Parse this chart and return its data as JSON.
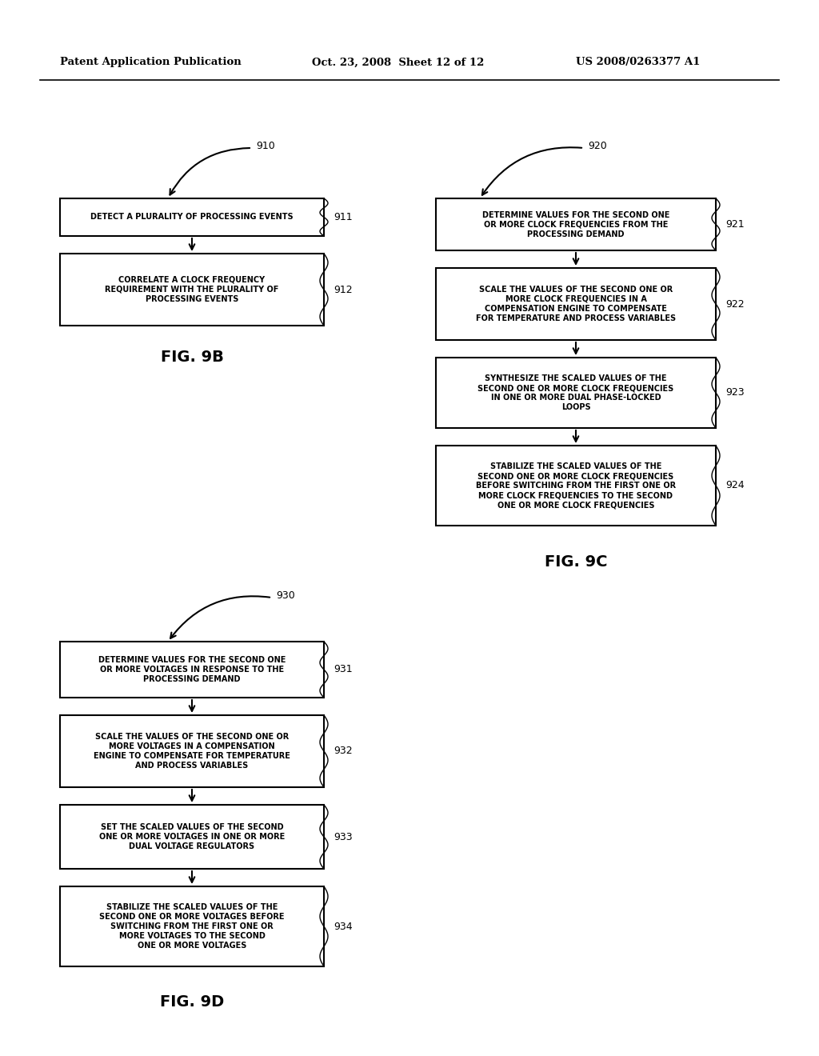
{
  "bg_color": "#ffffff",
  "header_left": "Patent Application Publication",
  "header_mid": "Oct. 23, 2008  Sheet 12 of 12",
  "header_right": "US 2008/0263377 A1",
  "fig9b_label": "FIG. 9B",
  "fig9c_label": "FIG. 9C",
  "fig9d_label": "FIG. 9D",
  "arrow_910": "910",
  "arrow_920": "920",
  "arrow_930": "930",
  "box911_text": "DETECT A PLURALITY OF PROCESSING EVENTS",
  "box911_label": "911",
  "box912_text": "CORRELATE A CLOCK FREQUENCY\nREQUIREMENT WITH THE PLURALITY OF\nPROCESSING EVENTS",
  "box912_label": "912",
  "box921_text": "DETERMINE VALUES FOR THE SECOND ONE\nOR MORE CLOCK FREQUENCIES FROM THE\nPROCESSING DEMAND",
  "box921_label": "921",
  "box922_text": "SCALE THE VALUES OF THE SECOND ONE OR\nMORE CLOCK FREQUENCIES IN A\nCOMPENSATION ENGINE TO COMPENSATE\nFOR TEMPERATURE AND PROCESS VARIABLES",
  "box922_label": "922",
  "box923_text": "SYNTHESIZE THE SCALED VALUES OF THE\nSECOND ONE OR MORE CLOCK FREQUENCIES\nIN ONE OR MORE DUAL PHASE-LOCKED\nLOOPS",
  "box923_label": "923",
  "box924_text": "STABILIZE THE SCALED VALUES OF THE\nSECOND ONE OR MORE CLOCK FREQUENCIES\nBEFORE SWITCHING FROM THE FIRST ONE OR\nMORE CLOCK FREQUENCIES TO THE SECOND\nONE OR MORE CLOCK FREQUENCIES",
  "box924_label": "924",
  "box931_text": "DETERMINE VALUES FOR THE SECOND ONE\nOR MORE VOLTAGES IN RESPONSE TO THE\nPROCESSING DEMAND",
  "box931_label": "931",
  "box932_text": "SCALE THE VALUES OF THE SECOND ONE OR\nMORE VOLTAGES IN A COMPENSATION\nENGINE TO COMPENSATE FOR TEMPERATURE\nAND PROCESS VARIABLES",
  "box932_label": "932",
  "box933_text": "SET THE SCALED VALUES OF THE SECOND\nONE OR MORE VOLTAGES IN ONE OR MORE\nDUAL VOLTAGE REGULATORS",
  "box933_label": "933",
  "box934_text": "STABILIZE THE SCALED VALUES OF THE\nSECOND ONE OR MORE VOLTAGES BEFORE\nSWITCHING FROM THE FIRST ONE OR\nMORE VOLTAGES TO THE SECOND\nONE OR MORE VOLTAGES",
  "box934_label": "934"
}
